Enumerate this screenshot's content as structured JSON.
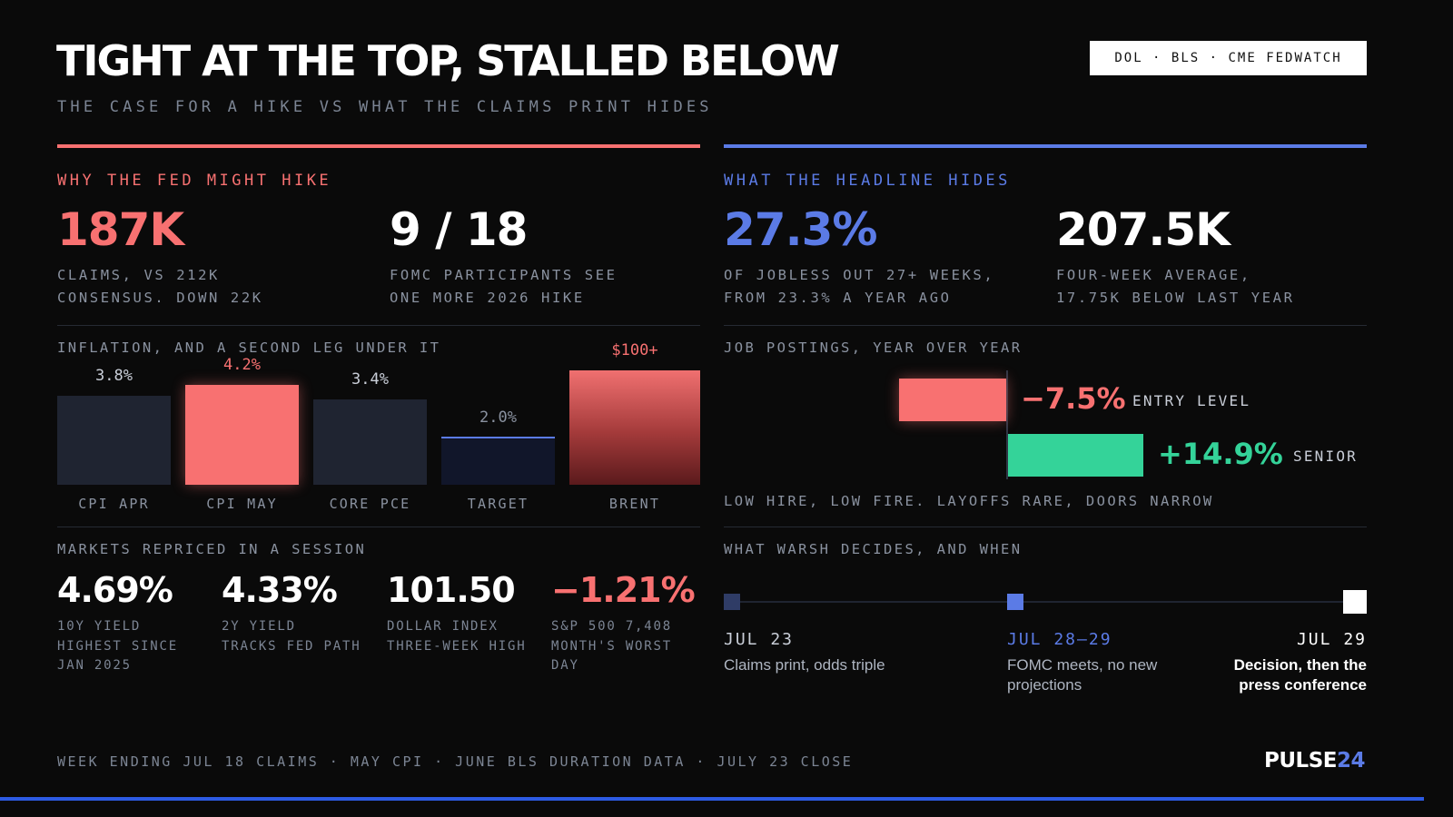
{
  "header": {
    "title": "TIGHT AT THE TOP, STALLED BELOW",
    "subtitle": "THE CASE FOR A HIKE VS WHAT THE CLAIMS PRINT HIDES",
    "source": "DOL · BLS · CME FEDWATCH"
  },
  "colors": {
    "background": "#0a0a0a",
    "red": "#f87171",
    "blue": "#5b7be6",
    "green": "#34d399",
    "muted": "#8a92a0",
    "dark_bar": "#1f2431"
  },
  "left": {
    "heading": "WHY THE FED MIGHT HIKE",
    "stat1": {
      "value": "187K",
      "line1": "CLAIMS, VS 212K",
      "line2": "CONSENSUS. DOWN 22K"
    },
    "stat2": {
      "value": "9 / 18",
      "line1": "FOMC PARTICIPANTS SEE",
      "line2": "ONE MORE 2026 HIKE"
    },
    "inflation_heading": "INFLATION, AND A SECOND LEG UNDER IT",
    "markets_heading": "MARKETS REPRICED IN A SESSION",
    "markets": [
      {
        "value": "4.69%",
        "line1": "10Y YIELD",
        "line2": "HIGHEST SINCE",
        "line3": "JAN 2025"
      },
      {
        "value": "4.33%",
        "line1": "2Y YIELD",
        "line2": "TRACKS FED PATH",
        "line3": ""
      },
      {
        "value": "101.50",
        "line1": "DOLLAR INDEX",
        "line2": "THREE-WEEK HIGH",
        "line3": ""
      },
      {
        "value": "−1.21%",
        "line1": "S&P 500 7,408",
        "line2": "MONTH'S WORST",
        "line3": "DAY"
      }
    ]
  },
  "right": {
    "heading": "WHAT THE HEADLINE HIDES",
    "stat1": {
      "value": "27.3%",
      "line1": "OF JOBLESS OUT 27+ WEEKS,",
      "line2": "FROM 23.3% A YEAR AGO"
    },
    "stat2": {
      "value": "207.5K",
      "line1": "FOUR-WEEK AVERAGE,",
      "line2": "17.75K BELOW LAST YEAR"
    },
    "postings_heading": "JOB POSTINGS, YEAR OVER YEAR",
    "postings_note": "LOW HIRE, LOW FIRE. LAYOFFS RARE, DOORS NARROW",
    "timeline_heading": "WHAT WARSH DECIDES, AND WHEN",
    "timeline": [
      {
        "date": "JUL 23",
        "desc": "Claims print, odds triple"
      },
      {
        "date": "JUL 28–29",
        "desc": "FOMC meets, no new projections"
      },
      {
        "date": "JUL 29",
        "desc": "Decision, then the press conference"
      }
    ]
  },
  "chart_data": [
    {
      "type": "bar",
      "title": "INFLATION, AND A SECOND LEG UNDER IT",
      "categories": [
        "CPI APR",
        "CPI MAY",
        "CORE PCE",
        "TARGET",
        "BRENT"
      ],
      "values": [
        3.8,
        4.2,
        3.4,
        2.0,
        null
      ],
      "value_labels": [
        "3.8%",
        "4.2%",
        "3.4%",
        "2.0%",
        "$100+"
      ],
      "highlight": [
        "CPI MAY",
        "BRENT"
      ]
    },
    {
      "type": "bar",
      "title": "JOB POSTINGS, YEAR OVER YEAR",
      "categories": [
        "ENTRY LEVEL",
        "SENIOR"
      ],
      "values": [
        -7.5,
        14.9
      ],
      "value_labels": [
        "−7.5%",
        "+14.9%"
      ]
    }
  ],
  "footer": {
    "text": "WEEK ENDING JUL 18 CLAIMS · MAY CPI · JUNE BLS DURATION DATA · JULY 23 CLOSE",
    "brand_a": "PULSE",
    "brand_b": "24"
  }
}
